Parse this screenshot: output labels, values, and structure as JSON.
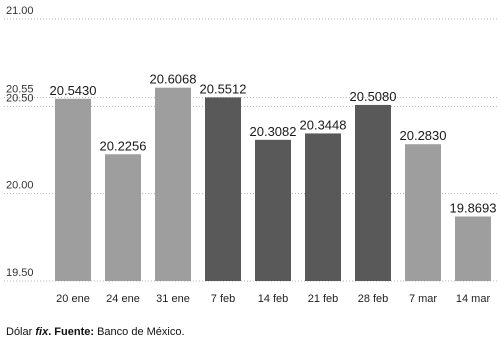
{
  "chart_data": {
    "type": "bar",
    "categories": [
      "20 ene",
      "24 ene",
      "31 ene",
      "7 feb",
      "14 feb",
      "21 feb",
      "28 feb",
      "7 mar",
      "14 mar"
    ],
    "values": [
      20.543,
      20.2256,
      20.6068,
      20.5512,
      20.3082,
      20.3448,
      20.508,
      20.283,
      19.8693
    ],
    "value_labels": [
      "20.5430",
      "20.2256",
      "20.6068",
      "20.5512",
      "20.3082",
      "20.3448",
      "20.5080",
      "20.2830",
      "19.8693"
    ],
    "bar_colors": [
      "#9e9e9e",
      "#9e9e9e",
      "#9e9e9e",
      "#595959",
      "#595959",
      "#595959",
      "#595959",
      "#9e9e9e",
      "#9e9e9e"
    ],
    "ylim": [
      19.5,
      21.0
    ],
    "y_ticks": [
      "21.00",
      "20.55",
      "20.50",
      "20.00",
      "19.50"
    ],
    "y_tick_values": [
      21.0,
      20.55,
      20.5,
      20.0,
      19.5
    ],
    "title": "",
    "xlabel": "",
    "ylabel": "",
    "grid": "horizontal dotted",
    "legend": "none"
  },
  "caption": {
    "part1": "Dólar ",
    "part2": "fix",
    "part3": ". Fuente:",
    "part4": " Banco de México."
  }
}
